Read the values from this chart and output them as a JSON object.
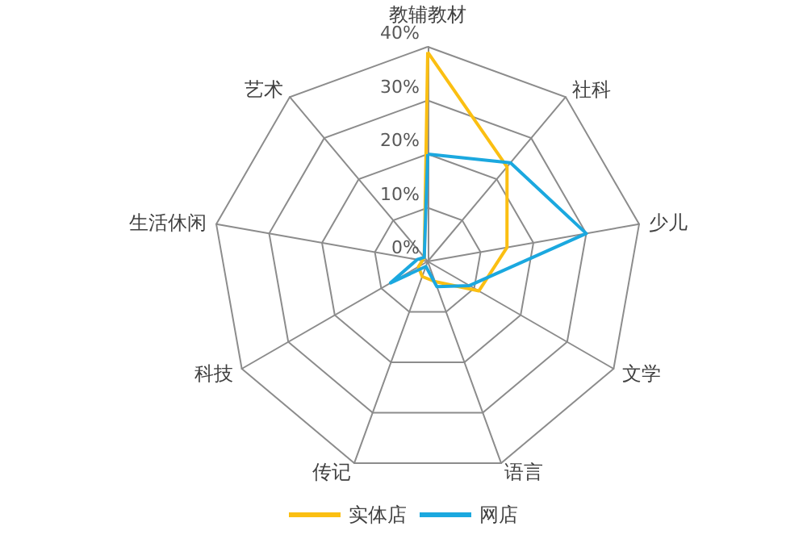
{
  "chart_data": {
    "type": "radar",
    "categories": [
      "教辅教材",
      "社科",
      "少儿",
      "文学",
      "语言",
      "传记",
      "科技",
      "生活休闲",
      "艺术"
    ],
    "series": [
      {
        "name": "实体店",
        "color": "#fbbf12",
        "values": [
          39,
          23,
          15,
          11,
          4,
          3,
          2,
          1,
          1
        ]
      },
      {
        "name": "网店",
        "color": "#1ba8df",
        "values": [
          20,
          24,
          30,
          9,
          5,
          1,
          8,
          2,
          1
        ]
      }
    ],
    "ylim": [
      0,
      40
    ],
    "yticks": [
      {
        "value": 0,
        "label": "0%"
      },
      {
        "value": 10,
        "label": "10%"
      },
      {
        "value": 20,
        "label": "20%"
      },
      {
        "value": 30,
        "label": "30%"
      },
      {
        "value": 40,
        "label": "40%"
      }
    ],
    "legend": "bottom",
    "marker": "none",
    "line_style": "solid"
  }
}
